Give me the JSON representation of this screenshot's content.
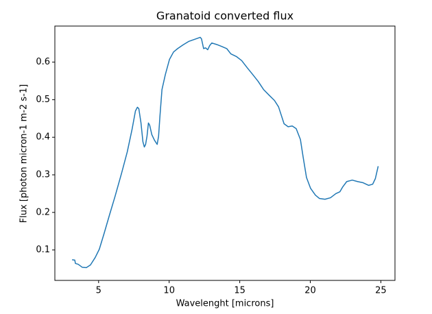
{
  "chart_data": {
    "type": "line",
    "title": "Granatoid converted flux",
    "xlabel": "Wavelenght [microns]",
    "ylabel": "Flux [photon micron-1 m-2 s-1]",
    "x": [
      3.12,
      3.31,
      3.36,
      3.55,
      3.84,
      4.13,
      4.42,
      4.76,
      5.05,
      5.39,
      5.77,
      6.16,
      6.64,
      7.03,
      7.37,
      7.61,
      7.75,
      7.85,
      8.0,
      8.14,
      8.24,
      8.33,
      8.43,
      8.53,
      8.62,
      8.77,
      8.96,
      9.15,
      9.25,
      9.35,
      9.49,
      9.73,
      10.02,
      10.31,
      10.6,
      10.99,
      11.38,
      11.76,
      12.05,
      12.2,
      12.29,
      12.44,
      12.58,
      12.73,
      12.87,
      13.02,
      13.36,
      13.7,
      14.08,
      14.37,
      14.76,
      15.14,
      15.53,
      15.92,
      16.3,
      16.69,
      17.08,
      17.46,
      17.75,
      17.95,
      18.14,
      18.43,
      18.72,
      19.0,
      19.3,
      19.49,
      19.73,
      20.02,
      20.36,
      20.65,
      21.04,
      21.43,
      21.81,
      22.1,
      22.3,
      22.58,
      22.97,
      23.36,
      23.74,
      24.13,
      24.42,
      24.61,
      24.81
    ],
    "series": [
      {
        "name": "flux",
        "color": "#1f77b4",
        "values": [
          0.074,
          0.073,
          0.064,
          0.062,
          0.054,
          0.053,
          0.06,
          0.08,
          0.102,
          0.144,
          0.193,
          0.242,
          0.306,
          0.361,
          0.421,
          0.47,
          0.48,
          0.476,
          0.439,
          0.388,
          0.374,
          0.381,
          0.403,
          0.438,
          0.432,
          0.407,
          0.392,
          0.381,
          0.403,
          0.458,
          0.527,
          0.567,
          0.607,
          0.627,
          0.636,
          0.646,
          0.655,
          0.66,
          0.664,
          0.666,
          0.662,
          0.636,
          0.638,
          0.633,
          0.644,
          0.651,
          0.647,
          0.642,
          0.636,
          0.622,
          0.615,
          0.604,
          0.585,
          0.567,
          0.549,
          0.527,
          0.512,
          0.498,
          0.481,
          0.458,
          0.436,
          0.428,
          0.43,
          0.423,
          0.394,
          0.348,
          0.293,
          0.264,
          0.246,
          0.237,
          0.235,
          0.239,
          0.25,
          0.255,
          0.268,
          0.282,
          0.286,
          0.282,
          0.279,
          0.272,
          0.275,
          0.29,
          0.323
        ]
      }
    ],
    "xlim": [
      1.9,
      26.0
    ],
    "ylim": [
      0.019,
      0.696
    ],
    "xticks": [
      5,
      10,
      15,
      20,
      25
    ],
    "yticks": [
      0.1,
      0.2,
      0.3,
      0.4,
      0.5,
      0.6
    ]
  }
}
